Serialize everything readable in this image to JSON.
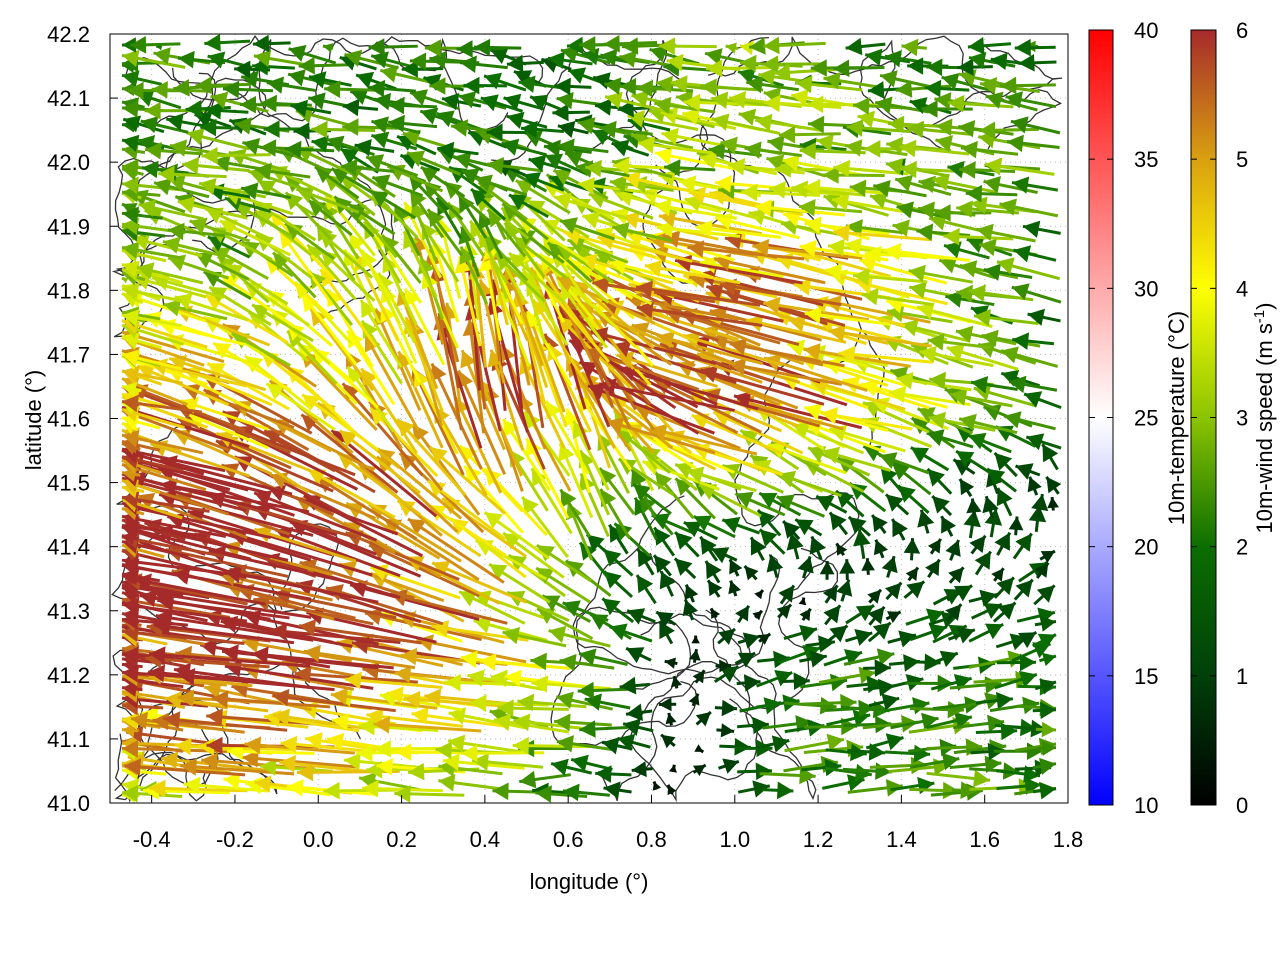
{
  "chart_data": {
    "type": "vector-field",
    "xlabel": "longitude (°)",
    "ylabel": "latitude (°)",
    "xlim": [
      -0.5,
      1.8
    ],
    "ylim": [
      41.0,
      42.2
    ],
    "xticks": [
      "-0.4",
      "-0.2",
      "0.0",
      "0.2",
      "0.4",
      "0.6",
      "0.8",
      "1.0",
      "1.2",
      "1.4",
      "1.6",
      "1.8"
    ],
    "yticks": [
      "41.0",
      "41.1",
      "41.2",
      "41.3",
      "41.4",
      "41.5",
      "41.6",
      "41.7",
      "41.8",
      "41.9",
      "42.0",
      "42.1",
      "42.2"
    ],
    "grid": true,
    "field_lon": [
      -0.5,
      -0.2,
      0.1,
      0.4,
      0.7,
      1.0,
      1.3,
      1.6,
      1.8
    ],
    "field_lat": [
      41.0,
      41.2,
      41.4,
      41.6,
      41.8,
      42.0,
      42.2
    ],
    "u_ms": [
      [
        -3,
        -4,
        -4,
        -3,
        -2,
        2,
        2.5,
        2.5,
        2.5
      ],
      [
        -6,
        -6,
        -6,
        -5,
        -3,
        1.5,
        2,
        2,
        2
      ],
      [
        -6,
        -6,
        -6,
        -4,
        -1,
        -1,
        -0.5,
        0.5,
        0.5
      ],
      [
        -4,
        -5,
        -3,
        -0.5,
        -2,
        -6,
        -5,
        -3,
        -2
      ],
      [
        -3,
        -3,
        -2,
        -1,
        -3,
        -5,
        -5,
        -3,
        -2
      ],
      [
        -2.5,
        -2.5,
        -2.5,
        -2,
        -2,
        -3,
        -3,
        -2.5,
        -2.5
      ],
      [
        -2,
        -2,
        -2,
        -2,
        -2,
        -3,
        -2.5,
        -2,
        -2
      ]
    ],
    "v_ms": [
      [
        0.3,
        0.3,
        0.2,
        0,
        0,
        0,
        0,
        0,
        0
      ],
      [
        0.8,
        0.8,
        0.8,
        0.6,
        0.3,
        0.3,
        0.3,
        0.3,
        0.2
      ],
      [
        1.5,
        1.5,
        2,
        3,
        2,
        0.8,
        1,
        1,
        1
      ],
      [
        1,
        1.5,
        3,
        6,
        5,
        2,
        1.5,
        0.8,
        0.5
      ],
      [
        1,
        1,
        3,
        3,
        2,
        1,
        1,
        0.5,
        0.5
      ],
      [
        0.3,
        0.3,
        0.5,
        0.5,
        0.5,
        0.5,
        0.3,
        0.3,
        0.3
      ],
      [
        0.2,
        0.2,
        0.2,
        0.2,
        0.2,
        0.2,
        0.2,
        0.2,
        0.2
      ]
    ],
    "colorbars": [
      {
        "label": "10m-temperature (°C)",
        "range": [
          10,
          40
        ],
        "ticks": [
          "10",
          "15",
          "20",
          "25",
          "30",
          "35",
          "40"
        ],
        "colors": [
          "#0000ff",
          "#ffffff",
          "#ff0000"
        ]
      },
      {
        "label": "10m-wind speed (m s",
        "label_sup": "-1",
        "label_end": ")",
        "range": [
          0,
          6
        ],
        "ticks": [
          "0",
          "1",
          "2",
          "3",
          "4",
          "5",
          "6"
        ],
        "colors": [
          "#000000",
          "#00400a",
          "#0b6e00",
          "#8cc400",
          "#ffff00",
          "#d9a010",
          "#a52a2a"
        ]
      }
    ],
    "contour_color": "#333333"
  }
}
